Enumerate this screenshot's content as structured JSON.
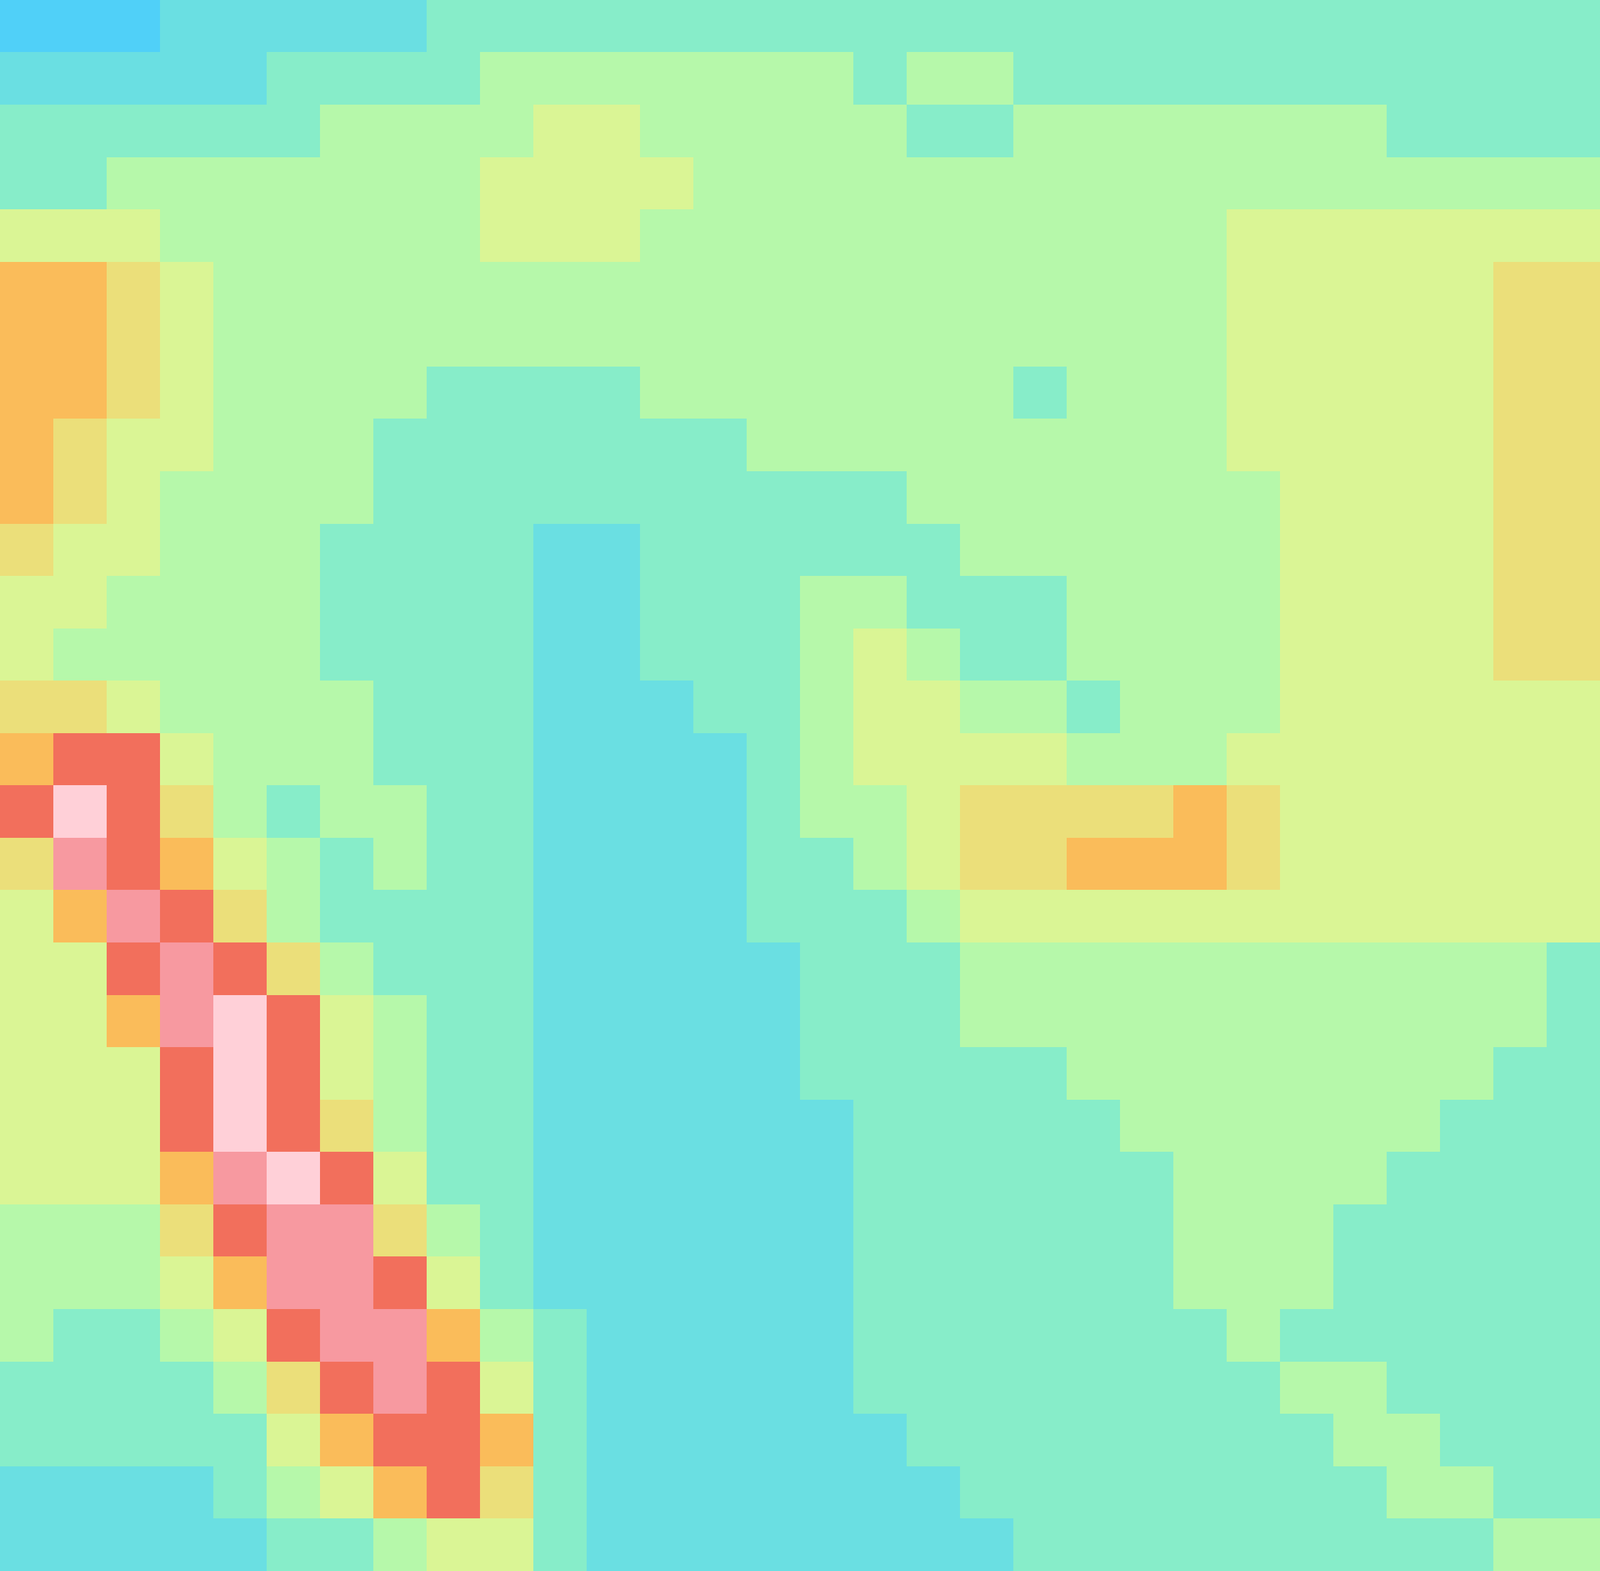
{
  "chart_data": {
    "type": "heatmap",
    "tick_labels": false,
    "cells": [
      [
        1,
        1,
        1,
        2,
        2,
        2,
        2,
        2,
        3,
        3,
        3,
        3,
        3,
        3,
        3,
        3,
        3,
        3,
        3,
        3,
        3,
        3,
        3,
        3,
        3,
        3,
        3,
        3,
        3,
        3
      ],
      [
        2,
        2,
        2,
        2,
        2,
        3,
        3,
        3,
        3,
        4,
        4,
        4,
        4,
        4,
        4,
        4,
        3,
        4,
        4,
        3,
        3,
        3,
        3,
        3,
        3,
        3,
        3,
        3,
        3,
        3
      ],
      [
        3,
        3,
        3,
        3,
        3,
        3,
        4,
        4,
        4,
        4,
        5,
        5,
        4,
        4,
        4,
        4,
        4,
        3,
        3,
        4,
        4,
        4,
        4,
        4,
        4,
        4,
        3,
        3,
        3,
        3
      ],
      [
        3,
        3,
        4,
        4,
        4,
        4,
        4,
        4,
        4,
        5,
        5,
        5,
        5,
        4,
        4,
        4,
        4,
        4,
        4,
        4,
        4,
        4,
        4,
        4,
        4,
        4,
        4,
        4,
        4,
        4
      ],
      [
        5,
        5,
        5,
        4,
        4,
        4,
        4,
        4,
        4,
        5,
        5,
        5,
        4,
        4,
        4,
        4,
        4,
        4,
        4,
        4,
        4,
        4,
        4,
        5,
        5,
        5,
        5,
        5,
        5,
        5
      ],
      [
        7,
        7,
        6,
        5,
        4,
        4,
        4,
        4,
        4,
        4,
        4,
        4,
        4,
        4,
        4,
        4,
        4,
        4,
        4,
        4,
        4,
        4,
        4,
        5,
        5,
        5,
        5,
        5,
        6,
        6
      ],
      [
        7,
        7,
        6,
        5,
        4,
        4,
        4,
        4,
        4,
        4,
        4,
        4,
        4,
        4,
        4,
        4,
        4,
        4,
        4,
        4,
        4,
        4,
        4,
        5,
        5,
        5,
        5,
        5,
        6,
        6
      ],
      [
        7,
        7,
        6,
        5,
        4,
        4,
        4,
        4,
        3,
        3,
        3,
        3,
        4,
        4,
        4,
        4,
        4,
        4,
        4,
        3,
        4,
        4,
        4,
        5,
        5,
        5,
        5,
        5,
        6,
        6
      ],
      [
        7,
        6,
        5,
        5,
        4,
        4,
        4,
        3,
        3,
        3,
        3,
        3,
        3,
        3,
        4,
        4,
        4,
        4,
        4,
        4,
        4,
        4,
        4,
        5,
        5,
        5,
        5,
        5,
        6,
        6
      ],
      [
        7,
        6,
        5,
        4,
        4,
        4,
        4,
        3,
        3,
        3,
        3,
        3,
        3,
        3,
        3,
        3,
        3,
        4,
        4,
        4,
        4,
        4,
        4,
        4,
        5,
        5,
        5,
        5,
        6,
        6
      ],
      [
        6,
        5,
        5,
        4,
        4,
        4,
        3,
        3,
        3,
        3,
        2,
        2,
        3,
        3,
        3,
        3,
        3,
        3,
        4,
        4,
        4,
        4,
        4,
        4,
        5,
        5,
        5,
        5,
        6,
        6
      ],
      [
        5,
        5,
        4,
        4,
        4,
        4,
        3,
        3,
        3,
        3,
        2,
        2,
        3,
        3,
        3,
        4,
        4,
        3,
        3,
        3,
        4,
        4,
        4,
        4,
        5,
        5,
        5,
        5,
        6,
        6
      ],
      [
        5,
        4,
        4,
        4,
        4,
        4,
        3,
        3,
        3,
        3,
        2,
        2,
        3,
        3,
        3,
        4,
        5,
        4,
        3,
        3,
        4,
        4,
        4,
        4,
        5,
        5,
        5,
        5,
        6,
        6
      ],
      [
        6,
        6,
        5,
        4,
        4,
        4,
        4,
        3,
        3,
        3,
        2,
        2,
        2,
        3,
        3,
        4,
        5,
        5,
        4,
        4,
        3,
        4,
        4,
        4,
        5,
        5,
        5,
        5,
        5,
        5
      ],
      [
        7,
        8,
        8,
        5,
        4,
        4,
        4,
        3,
        3,
        3,
        2,
        2,
        2,
        2,
        3,
        4,
        5,
        5,
        5,
        5,
        4,
        4,
        4,
        5,
        5,
        5,
        5,
        5,
        5,
        5
      ],
      [
        8,
        10,
        8,
        6,
        4,
        3,
        4,
        4,
        3,
        3,
        2,
        2,
        2,
        2,
        3,
        4,
        4,
        5,
        6,
        6,
        6,
        6,
        7,
        6,
        5,
        5,
        5,
        5,
        5,
        5
      ],
      [
        6,
        9,
        8,
        7,
        5,
        4,
        3,
        4,
        3,
        3,
        2,
        2,
        2,
        2,
        3,
        3,
        4,
        5,
        6,
        6,
        7,
        7,
        7,
        6,
        5,
        5,
        5,
        5,
        5,
        5
      ],
      [
        5,
        7,
        9,
        8,
        6,
        4,
        3,
        3,
        3,
        3,
        2,
        2,
        2,
        2,
        3,
        3,
        3,
        4,
        5,
        5,
        5,
        5,
        5,
        5,
        5,
        5,
        5,
        5,
        5,
        5
      ],
      [
        5,
        5,
        8,
        9,
        8,
        6,
        4,
        3,
        3,
        3,
        2,
        2,
        2,
        2,
        2,
        3,
        3,
        3,
        4,
        4,
        4,
        4,
        4,
        4,
        4,
        4,
        4,
        4,
        4,
        3
      ],
      [
        5,
        5,
        7,
        9,
        10,
        8,
        5,
        4,
        3,
        3,
        2,
        2,
        2,
        2,
        2,
        3,
        3,
        3,
        4,
        4,
        4,
        4,
        4,
        4,
        4,
        4,
        4,
        4,
        4,
        3
      ],
      [
        5,
        5,
        5,
        8,
        10,
        8,
        5,
        4,
        3,
        3,
        2,
        2,
        2,
        2,
        2,
        3,
        3,
        3,
        3,
        3,
        4,
        4,
        4,
        4,
        4,
        4,
        4,
        4,
        3,
        3
      ],
      [
        5,
        5,
        5,
        8,
        10,
        8,
        6,
        4,
        3,
        3,
        2,
        2,
        2,
        2,
        2,
        2,
        3,
        3,
        3,
        3,
        3,
        4,
        4,
        4,
        4,
        4,
        4,
        3,
        3,
        3
      ],
      [
        5,
        5,
        5,
        7,
        9,
        10,
        8,
        5,
        3,
        3,
        2,
        2,
        2,
        2,
        2,
        2,
        3,
        3,
        3,
        3,
        3,
        3,
        4,
        4,
        4,
        4,
        3,
        3,
        3,
        3
      ],
      [
        4,
        4,
        4,
        6,
        8,
        9,
        9,
        6,
        4,
        3,
        2,
        2,
        2,
        2,
        2,
        2,
        3,
        3,
        3,
        3,
        3,
        3,
        4,
        4,
        4,
        3,
        3,
        3,
        3,
        3
      ],
      [
        4,
        4,
        4,
        5,
        7,
        9,
        9,
        8,
        5,
        3,
        2,
        2,
        2,
        2,
        2,
        2,
        3,
        3,
        3,
        3,
        3,
        3,
        4,
        4,
        4,
        3,
        3,
        3,
        3,
        3
      ],
      [
        4,
        3,
        3,
        4,
        5,
        8,
        9,
        9,
        7,
        4,
        3,
        2,
        2,
        2,
        2,
        2,
        3,
        3,
        3,
        3,
        3,
        3,
        3,
        4,
        3,
        3,
        3,
        3,
        3,
        3
      ],
      [
        3,
        3,
        3,
        3,
        4,
        6,
        8,
        9,
        8,
        5,
        3,
        2,
        2,
        2,
        2,
        2,
        3,
        3,
        3,
        3,
        3,
        3,
        3,
        3,
        4,
        4,
        3,
        3,
        3,
        3
      ],
      [
        3,
        3,
        3,
        3,
        3,
        5,
        7,
        8,
        8,
        7,
        3,
        2,
        2,
        2,
        2,
        2,
        2,
        3,
        3,
        3,
        3,
        3,
        3,
        3,
        3,
        4,
        4,
        3,
        3,
        3
      ],
      [
        2,
        2,
        2,
        2,
        3,
        4,
        5,
        7,
        8,
        6,
        3,
        2,
        2,
        2,
        2,
        2,
        2,
        2,
        3,
        3,
        3,
        3,
        3,
        3,
        3,
        3,
        4,
        4,
        3,
        3
      ],
      [
        2,
        2,
        2,
        2,
        2,
        3,
        3,
        4,
        5,
        5,
        3,
        2,
        2,
        2,
        2,
        2,
        2,
        2,
        2,
        3,
        3,
        3,
        3,
        3,
        3,
        3,
        3,
        3,
        4,
        4
      ]
    ]
  }
}
